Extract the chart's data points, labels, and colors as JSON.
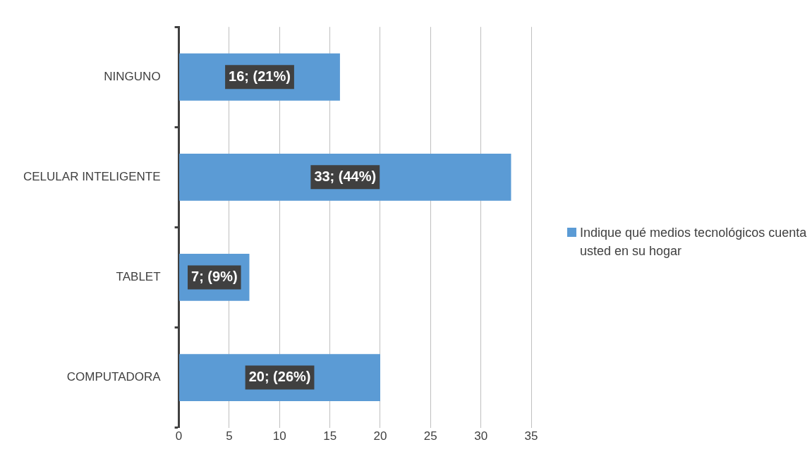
{
  "chart_data": {
    "type": "bar",
    "orientation": "horizontal",
    "categories": [
      "NINGUNO",
      "CELULAR INTELIGENTE",
      "TABLET",
      "COMPUTADORA"
    ],
    "series": [
      {
        "name": "Indique qué medios tecnológicos cuenta usted en su hogar",
        "color": "#5b9bd5",
        "values": [
          16,
          33,
          7,
          20
        ],
        "value_labels": [
          "16; (21%)",
          "33; (44%)",
          "7; (9%)",
          "20; (26%)"
        ]
      }
    ],
    "xlim": [
      0,
      35
    ],
    "xticks": [
      0,
      5,
      10,
      15,
      20,
      25,
      30,
      35
    ],
    "grid": "x",
    "legend": "right"
  }
}
